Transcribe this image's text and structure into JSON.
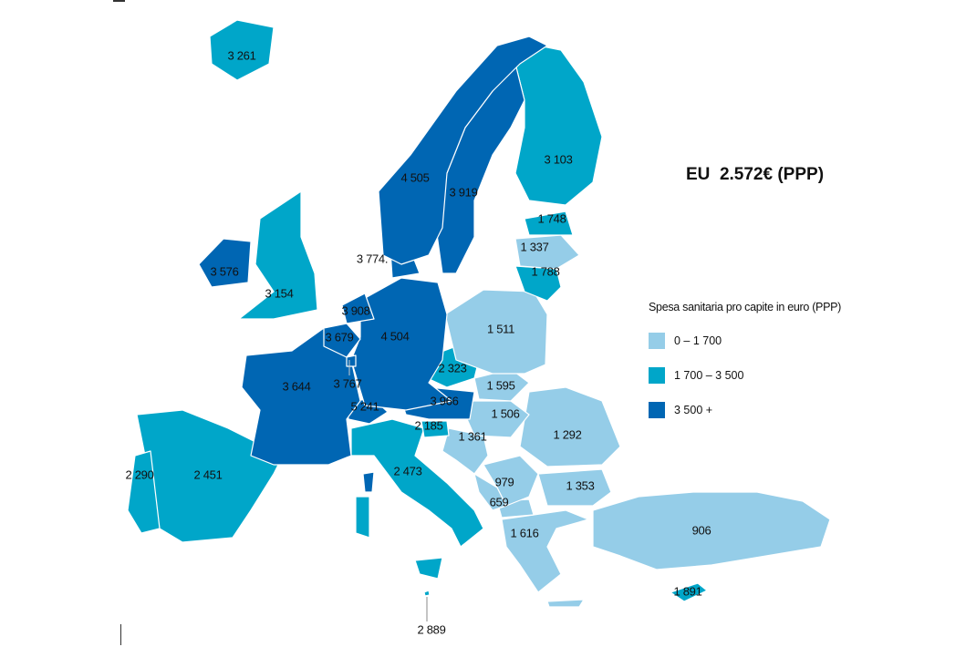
{
  "title": "EU  2.572€ (PPP)",
  "legend": {
    "title": "Spesa sanitaria pro capite in euro (PPP)",
    "classes": [
      {
        "label": "0 – 1 700",
        "color": "#95cde8"
      },
      {
        "label": "1 700 – 3 500",
        "color": "#00a6c9"
      },
      {
        "label": "3 500 +",
        "color": "#0066b3"
      }
    ]
  },
  "regions": [
    {
      "value": "3 261",
      "class": 1
    },
    {
      "value": "4 505",
      "class": 2
    },
    {
      "value": "3 919",
      "class": 2
    },
    {
      "value": "3 103",
      "class": 1
    },
    {
      "value": "1 748",
      "class": 1
    },
    {
      "value": "1 337",
      "class": 0
    },
    {
      "value": "1 788",
      "class": 1
    },
    {
      "value": "3 774.",
      "class": 2
    },
    {
      "value": "3 576",
      "class": 2
    },
    {
      "value": "3 154",
      "class": 1
    },
    {
      "value": "3 908",
      "class": 2
    },
    {
      "value": "3 679",
      "class": 2
    },
    {
      "value": "3 767",
      "class": 2
    },
    {
      "value": "4 504",
      "class": 2
    },
    {
      "value": "1 511",
      "class": 0
    },
    {
      "value": "3 644",
      "class": 2
    },
    {
      "value": "2 323",
      "class": 1
    },
    {
      "value": "1 595",
      "class": 0
    },
    {
      "value": "3 966",
      "class": 2
    },
    {
      "value": "5 241",
      "class": 2
    },
    {
      "value": "1 506",
      "class": 0
    },
    {
      "value": "2 185",
      "class": 1
    },
    {
      "value": "1 361",
      "class": 0
    },
    {
      "value": "1 292",
      "class": 0
    },
    {
      "value": "2 290",
      "class": 1
    },
    {
      "value": "2 451",
      "class": 1
    },
    {
      "value": "2 473",
      "class": 1
    },
    {
      "value": "979",
      "class": 0
    },
    {
      "value": "1 353",
      "class": 0
    },
    {
      "value": "659",
      "class": 0
    },
    {
      "value": "1 616",
      "class": 0
    },
    {
      "value": "906",
      "class": 0
    },
    {
      "value": "1 891",
      "class": 1
    },
    {
      "value": "2 889",
      "class": 1
    }
  ]
}
